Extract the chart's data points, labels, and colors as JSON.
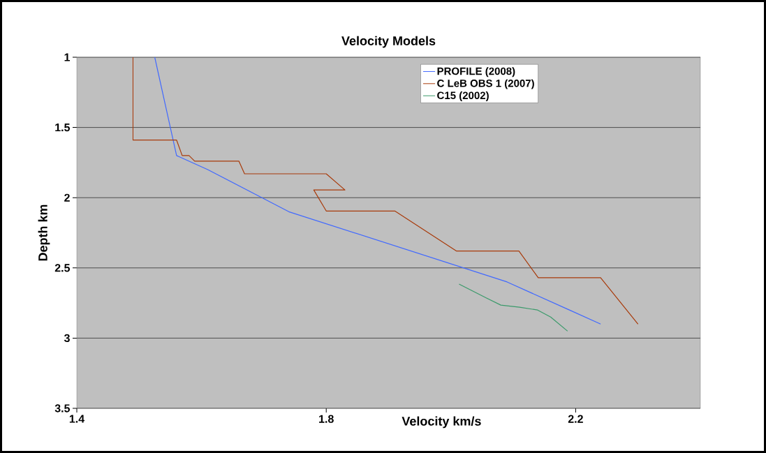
{
  "chart_data": {
    "type": "line",
    "title": "Velocity Models",
    "xlabel": "Velocity km/s",
    "ylabel": "Depth km",
    "xlim": [
      1.4,
      2.4
    ],
    "xticks": [
      1.4,
      1.8,
      2.2
    ],
    "ylim": [
      3.5,
      1
    ],
    "yticks": [
      1,
      1.5,
      2,
      2.5,
      3,
      3.5
    ],
    "grid": "y",
    "legend": "top right",
    "marker": "none",
    "line_style": "solid",
    "series": [
      {
        "name": "PROFILE (2008)",
        "color": "#4169ff",
        "x": [
          1.525,
          1.56,
          1.61,
          1.74,
          2.09,
          2.19,
          2.24
        ],
        "values": [
          1,
          1.7,
          1.8,
          2.1,
          2.6,
          2.8,
          2.9
        ]
      },
      {
        "name": "C LeB OBS 1 (2007)",
        "color": "#a83a0a",
        "x": [
          1.49,
          1.49,
          1.56,
          1.569,
          1.58,
          1.589,
          1.66,
          1.669,
          1.8,
          1.83,
          1.78,
          1.8,
          1.91,
          2.009,
          2.109,
          2.14,
          2.24,
          2.3
        ],
        "values": [
          1,
          1.59,
          1.59,
          1.7,
          1.7,
          1.74,
          1.74,
          1.83,
          1.83,
          1.945,
          1.945,
          2.095,
          2.095,
          2.38,
          2.38,
          2.57,
          2.57,
          2.9
        ]
      },
      {
        "name": "C15 (2002)",
        "color": "#3a9a6a",
        "x": [
          2.013,
          2.057,
          2.08,
          2.11,
          2.139,
          2.16,
          2.187
        ],
        "values": [
          2.615,
          2.715,
          2.765,
          2.78,
          2.8,
          2.85,
          2.95
        ]
      }
    ]
  }
}
